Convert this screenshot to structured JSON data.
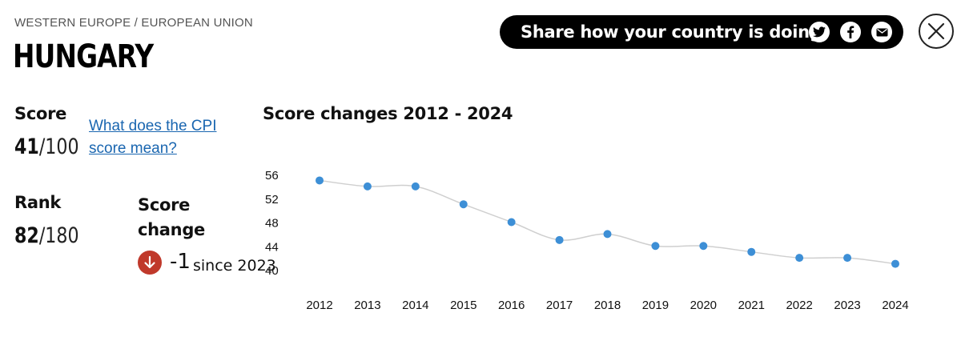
{
  "header": {
    "region": "WESTERN EUROPE / EUROPEAN UNION",
    "country": "HUNGARY"
  },
  "share": {
    "label": "Share how your country is doing",
    "icons": [
      "twitter-icon",
      "facebook-icon",
      "email-icon"
    ]
  },
  "close_icon": "close-icon",
  "score": {
    "label": "Score",
    "value": "41",
    "denominator": "/100",
    "link_text": "What does the CPI score mean?"
  },
  "rank": {
    "label": "Rank",
    "value": "82",
    "denominator": "/180"
  },
  "score_change": {
    "label": "Score change",
    "value": "-1",
    "since": "since 2023",
    "icon": "arrow-down-icon",
    "color": "#c0392b"
  },
  "chart_data": {
    "type": "line",
    "title": "Score changes 2012 - 2024",
    "x": [
      "2012",
      "2013",
      "2014",
      "2015",
      "2016",
      "2017",
      "2018",
      "2019",
      "2020",
      "2021",
      "2022",
      "2023",
      "2024"
    ],
    "series": [
      {
        "values": [
          55,
          54,
          54,
          51,
          48,
          45,
          46,
          44,
          44,
          43,
          42,
          42,
          41
        ]
      }
    ],
    "ylim": [
      40,
      56
    ],
    "yticks": [
      56,
      52,
      48,
      44,
      40
    ],
    "colors": {
      "point": "#3d8fd6",
      "line": "#cfcfcf"
    },
    "grid": false
  }
}
